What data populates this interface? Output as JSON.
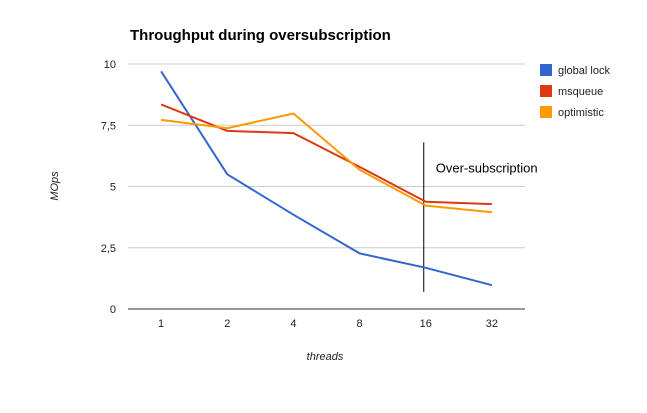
{
  "chart_data": {
    "type": "line",
    "title": "Throughput during oversubscription",
    "xlabel": "threads",
    "ylabel": "MOps",
    "categories": [
      "1",
      "2",
      "4",
      "8",
      "16",
      "32"
    ],
    "ylim": [
      0,
      10
    ],
    "yticks": [
      0,
      2.5,
      5,
      7.5,
      10
    ],
    "ytick_labels": [
      "0",
      "2,5",
      "5",
      "7,5",
      "10"
    ],
    "grid": true,
    "legend_position": "right",
    "series": [
      {
        "name": "global lock",
        "color": "#3366cc",
        "values": [
          9.7,
          5.5,
          3.85,
          2.27,
          1.68,
          0.97
        ]
      },
      {
        "name": "msqueue",
        "color": "#dc3912",
        "values": [
          8.35,
          7.27,
          7.18,
          5.8,
          4.38,
          4.28
        ]
      },
      {
        "name": "optimistic",
        "color": "#ff9900",
        "values": [
          7.72,
          7.38,
          7.98,
          5.68,
          4.22,
          3.95
        ]
      }
    ],
    "annotations": [
      {
        "text": "Over-subscription",
        "x": "16",
        "y_from": 0.7,
        "y_to": 6.8
      }
    ]
  }
}
